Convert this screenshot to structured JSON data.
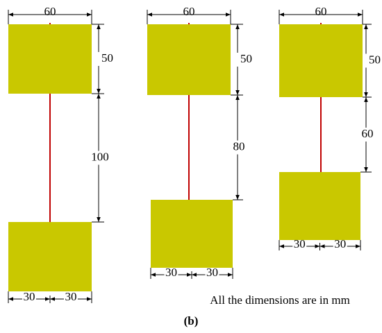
{
  "configurations": [
    {
      "width_label": "60",
      "height_label": "50",
      "gap_label": "100",
      "half_labels": [
        "30",
        "30"
      ]
    },
    {
      "width_label": "60",
      "height_label": "50",
      "gap_label": "80",
      "half_labels": [
        "30",
        "30"
      ]
    },
    {
      "width_label": "60",
      "height_label": "50",
      "gap_label": "60",
      "half_labels": [
        "30",
        "30"
      ]
    }
  ],
  "note": "All the dimensions are in mm",
  "caption": "(b)"
}
